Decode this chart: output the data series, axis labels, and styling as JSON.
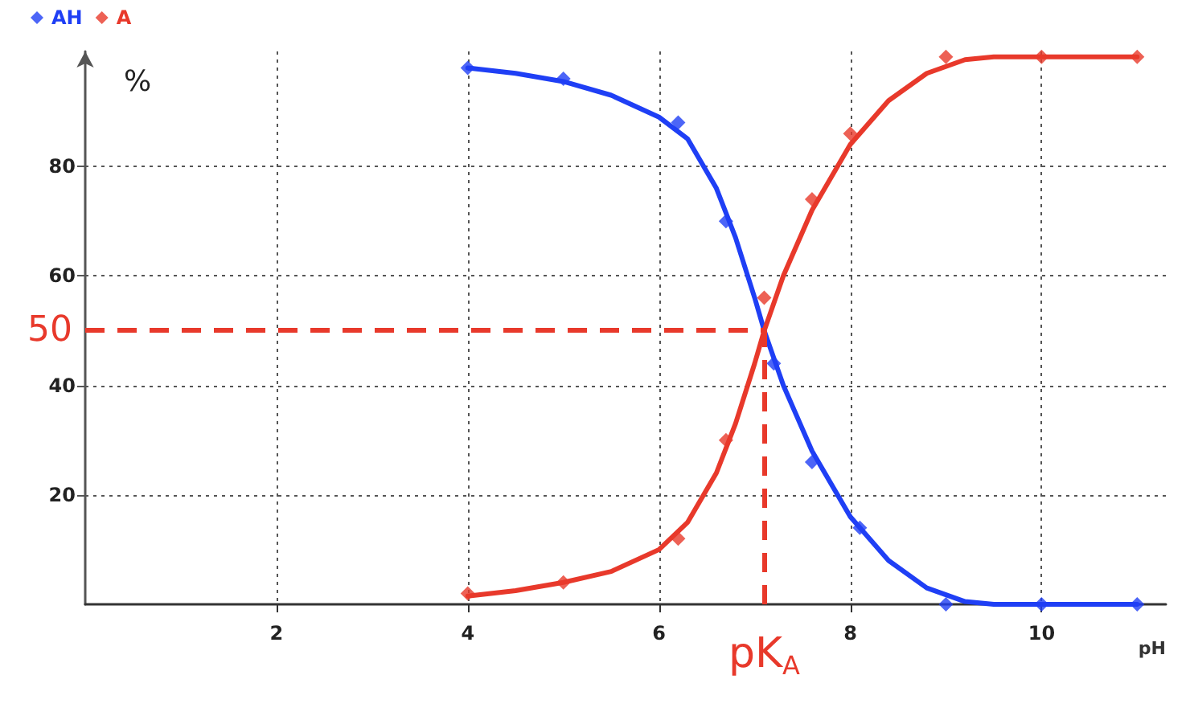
{
  "chart_data": {
    "type": "scatter",
    "xlabel": "pH",
    "ylabel": "%",
    "xlim": [
      0,
      11.3
    ],
    "ylim": [
      0,
      101
    ],
    "xticks": [
      2,
      4,
      6,
      8,
      10
    ],
    "yticks": [
      20,
      40,
      60,
      80
    ],
    "grid": true,
    "legend": "top left",
    "marker": "diamond",
    "series": [
      {
        "name": "AH",
        "color": "#1f3ff5",
        "x": [
          4,
          5,
          6.2,
          6.7,
          7.2,
          7.6,
          8.1,
          9,
          10,
          11
        ],
        "values": [
          98,
          96,
          88,
          70,
          44,
          26,
          14,
          0,
          0,
          0
        ]
      },
      {
        "name": "A",
        "color": "#e8392b",
        "x": [
          4,
          5,
          6.2,
          6.7,
          7.1,
          7.6,
          8,
          9,
          10,
          11
        ],
        "values": [
          2,
          4,
          12,
          30,
          56,
          74,
          86,
          100,
          100,
          100
        ]
      },
      {
        "type": "line",
        "color": "#1f3ff5",
        "line_style": "solid",
        "marker": "none",
        "x": [
          4,
          4.5,
          5,
          5.5,
          6,
          6.3,
          6.6,
          6.8,
          7,
          7.1,
          7.3,
          7.6,
          8,
          8.4,
          8.8,
          9.2,
          9.5,
          11
        ],
        "values": [
          98,
          97,
          95.5,
          93,
          89,
          85,
          76,
          67,
          56,
          50,
          40,
          28,
          16,
          8,
          3,
          0.5,
          0,
          0
        ]
      },
      {
        "type": "line",
        "color": "#e8392b",
        "line_style": "solid",
        "marker": "none",
        "x": [
          4,
          4.5,
          5,
          5.5,
          6,
          6.3,
          6.6,
          6.8,
          7,
          7.1,
          7.3,
          7.6,
          8,
          8.4,
          8.8,
          9.2,
          9.5,
          11
        ],
        "values": [
          1.5,
          2.5,
          4,
          6,
          10,
          15,
          24,
          33,
          44,
          50,
          60,
          72,
          84,
          92,
          97,
          99.5,
          100,
          100
        ]
      }
    ],
    "ref_lines": [
      {
        "axis": "y",
        "value": 50,
        "label": "50",
        "color": "#e8392b",
        "line_style": "dashed"
      },
      {
        "axis": "x",
        "value": 7.1,
        "label": "pK$_{A}$",
        "color": "#e8392b",
        "line_style": "dashed"
      }
    ]
  }
}
